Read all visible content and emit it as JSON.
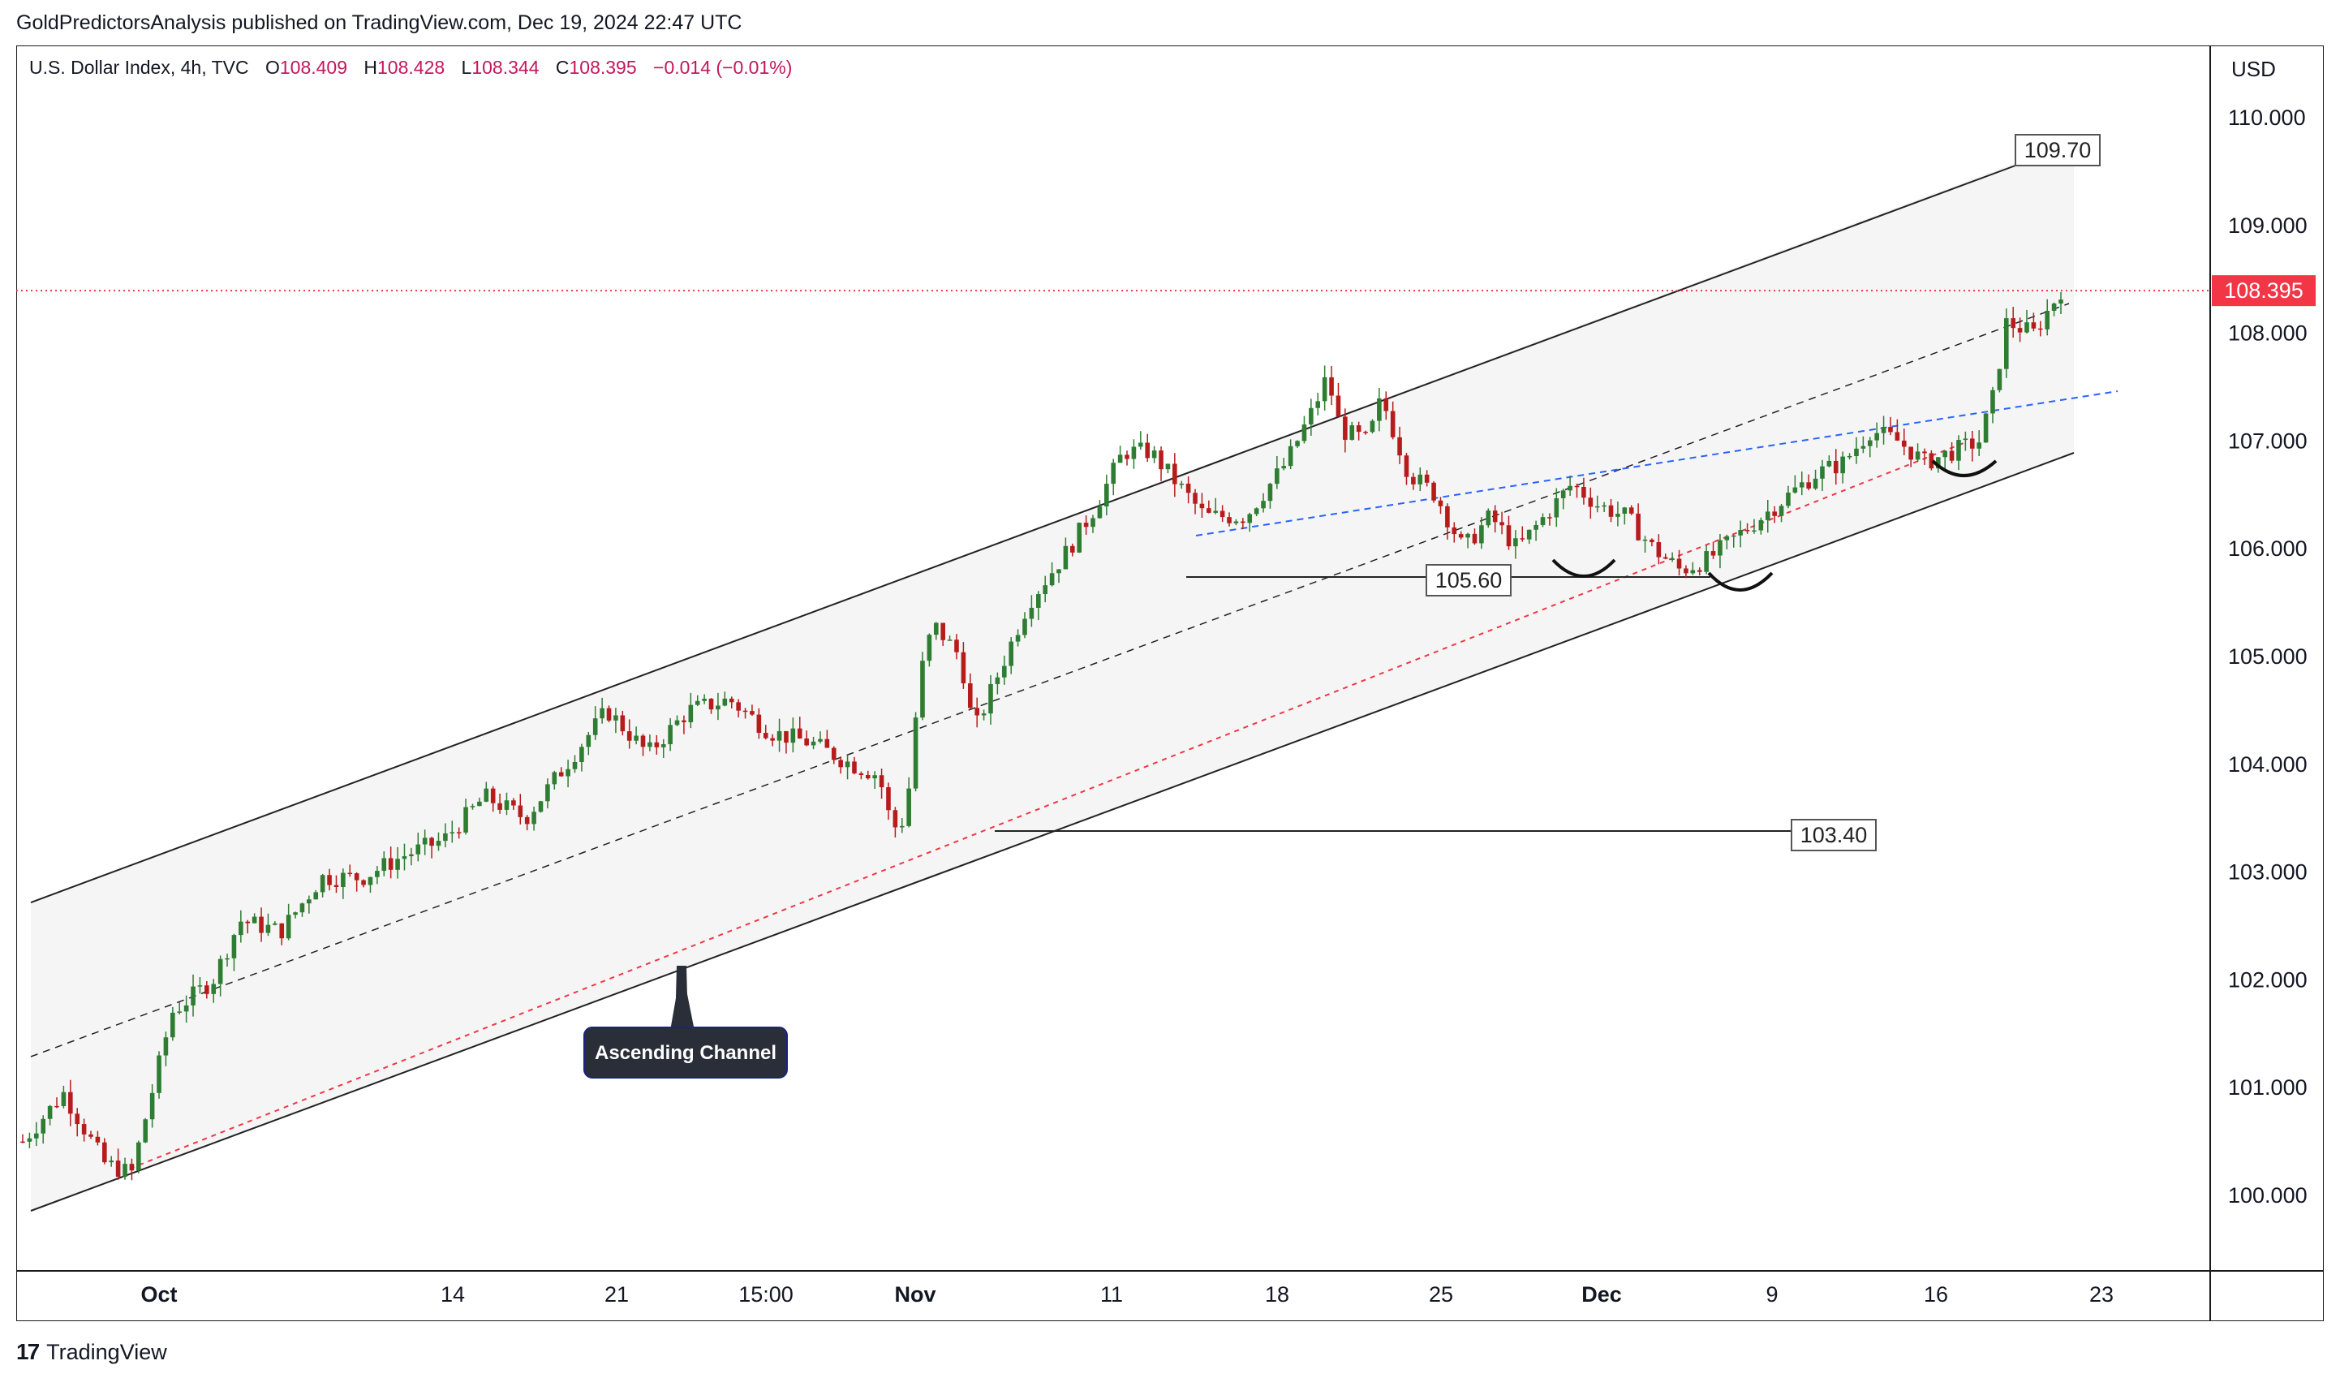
{
  "header": {
    "title": "GoldPredictorsAnalysis published on TradingView.com, Dec 19, 2024 22:47 UTC"
  },
  "legend": {
    "symbol": "U.S. Dollar Index, 4h, TVC",
    "open_label": "O",
    "open": "108.409",
    "high_label": "H",
    "high": "108.428",
    "low_label": "L",
    "low": "108.344",
    "close_label": "C",
    "close": "108.395",
    "change": "−0.014 (−0.01%)"
  },
  "axis": {
    "currency": "USD",
    "current_price": "108.395"
  },
  "footer": {
    "brand": "TradingView",
    "logo_glyph": "17"
  },
  "colors": {
    "up": "#26a69a",
    "down": "#ef5350",
    "up_candle": "#2e7d32",
    "down_candle": "#b71c1c",
    "channel_fill": "#f5f5f5",
    "blue_dash": "#2962ff",
    "red_dash": "#f23645",
    "price_line": "#f23645",
    "annotation_bg": "#2a2e39"
  },
  "chart_data": {
    "type": "candlestick",
    "x_tick_labels": [
      "Oct",
      "14",
      "21",
      "15:00",
      "Nov",
      "11",
      "18",
      "25",
      "Dec",
      "9",
      "16",
      "23"
    ],
    "y_tick_labels": [
      "110.000",
      "109.000",
      "108.000",
      "107.000",
      "106.000",
      "105.000",
      "104.000",
      "103.000",
      "102.000",
      "101.000",
      "100.000"
    ],
    "ylim": [
      99.3,
      110.6
    ],
    "price_labels": [
      "109.70",
      "105.60",
      "103.40"
    ],
    "annotation": "Ascending Channel",
    "path_points": [
      [
        0,
        100.5
      ],
      [
        3,
        100.95
      ],
      [
        6,
        100.3
      ],
      [
        8,
        100.2
      ],
      [
        11,
        101.7
      ],
      [
        14,
        102.0
      ],
      [
        16,
        102.55
      ],
      [
        19,
        102.45
      ],
      [
        22,
        102.95
      ],
      [
        25,
        102.95
      ],
      [
        28,
        103.15
      ],
      [
        31,
        103.3
      ],
      [
        34,
        103.7
      ],
      [
        37,
        103.5
      ],
      [
        40,
        104.0
      ],
      [
        43,
        104.5
      ],
      [
        46,
        104.1
      ],
      [
        49,
        104.5
      ],
      [
        52,
        104.6
      ],
      [
        55,
        104.3
      ],
      [
        58,
        104.2
      ],
      [
        61,
        104.0
      ],
      [
        63,
        103.9
      ],
      [
        64,
        103.4
      ],
      [
        65,
        103.5
      ],
      [
        66,
        104.8
      ],
      [
        67,
        105.3
      ],
      [
        69,
        105.0
      ],
      [
        70,
        104.3
      ],
      [
        72,
        104.9
      ],
      [
        74,
        105.5
      ],
      [
        77,
        106.0
      ],
      [
        79,
        106.4
      ],
      [
        81,
        106.9
      ],
      [
        83,
        106.9
      ],
      [
        85,
        106.6
      ],
      [
        87,
        106.3
      ],
      [
        90,
        106.3
      ],
      [
        93,
        106.8
      ],
      [
        95,
        107.3
      ],
      [
        96,
        107.6
      ],
      [
        97,
        107.1
      ],
      [
        99,
        107.0
      ],
      [
        100,
        107.4
      ],
      [
        102,
        106.7
      ],
      [
        104,
        106.5
      ],
      [
        106,
        106.0
      ],
      [
        108,
        106.3
      ],
      [
        110,
        106.0
      ],
      [
        112,
        106.3
      ],
      [
        114,
        106.6
      ],
      [
        116,
        106.4
      ],
      [
        118,
        106.3
      ],
      [
        120,
        106.0
      ],
      [
        122,
        105.8
      ],
      [
        124,
        105.9
      ],
      [
        126,
        106.1
      ],
      [
        128,
        106.3
      ],
      [
        130,
        106.5
      ],
      [
        132,
        106.7
      ],
      [
        134,
        106.8
      ],
      [
        136,
        107.1
      ],
      [
        138,
        107.0
      ],
      [
        140,
        106.8
      ],
      [
        142,
        106.9
      ],
      [
        144,
        107.0
      ],
      [
        145,
        107.4
      ],
      [
        146,
        108.1
      ],
      [
        148,
        108.0
      ],
      [
        150,
        108.4
      ]
    ]
  }
}
